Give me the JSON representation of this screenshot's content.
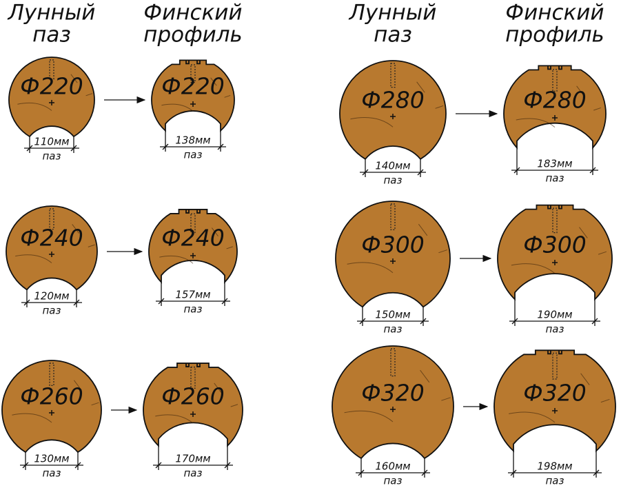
{
  "headers": [
    {
      "line1": "Лунный",
      "line2": "паз"
    },
    {
      "line1": "Финский",
      "line2": "профиль"
    },
    {
      "line1": "Лунный",
      "line2": "паз"
    },
    {
      "line1": "Финский",
      "line2": "профиль"
    }
  ],
  "logs": [
    {
      "diameter": "Ф220",
      "lunar": {
        "width": "110мм",
        "label": "паз"
      },
      "finnish": {
        "width": "138мм",
        "label": "паз"
      }
    },
    {
      "diameter": "Ф240",
      "lunar": {
        "width": "120мм",
        "label": "паз"
      },
      "finnish": {
        "width": "157мм",
        "label": "паз"
      }
    },
    {
      "diameter": "Ф260",
      "lunar": {
        "width": "130мм",
        "label": "паз"
      },
      "finnish": {
        "width": "170мм",
        "label": "паз"
      }
    },
    {
      "diameter": "Ф280",
      "lunar": {
        "width": "140мм",
        "label": "паз"
      },
      "finnish": {
        "width": "183мм",
        "label": "паз"
      }
    },
    {
      "diameter": "Ф300",
      "lunar": {
        "width": "150мм",
        "label": "паз"
      },
      "finnish": {
        "width": "190мм",
        "label": "паз"
      }
    },
    {
      "diameter": "Ф320",
      "lunar": {
        "width": "160мм",
        "label": "паз"
      },
      "finnish": {
        "width": "198мм",
        "label": "паз"
      }
    }
  ]
}
